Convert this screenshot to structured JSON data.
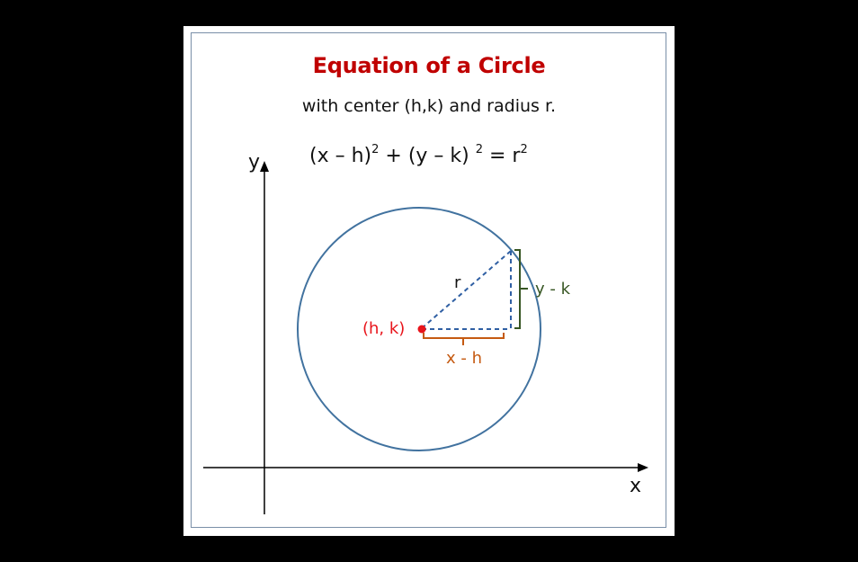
{
  "title": "Equation of a Circle",
  "subtitle": "with center (h,k) and radius r.",
  "equation": {
    "part1": "(x – h)",
    "exp1": "2",
    "part2": " + (y – k) ",
    "exp2": "2",
    "part3": " = r",
    "exp3": "2"
  },
  "axes": {
    "x_label": "x",
    "y_label": "y"
  },
  "labels": {
    "radius": "r",
    "center": "(h, k)",
    "horizontal_leg": "x - h",
    "vertical_leg": "y - k"
  },
  "colors": {
    "title": "#c00000",
    "circle": "#41729f",
    "center_point": "#e8141b",
    "horizontal_leg": "#c55a11",
    "vertical_leg": "#375623",
    "axes": "#000000",
    "frame_border": "#7a8fa8"
  }
}
